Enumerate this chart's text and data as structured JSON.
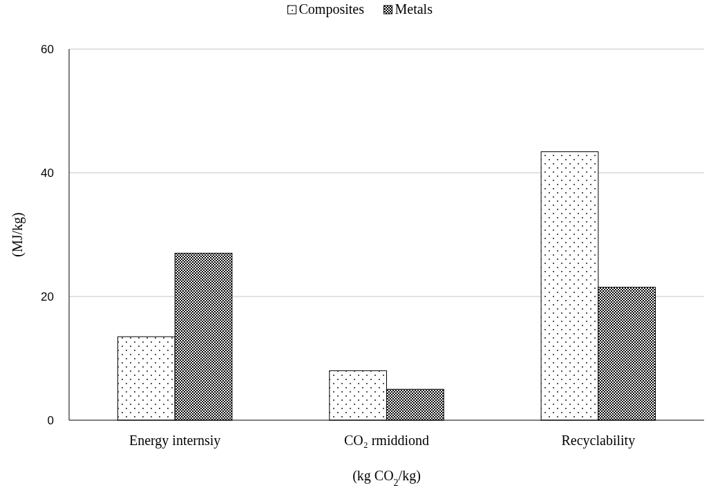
{
  "chart_data": {
    "type": "bar",
    "xlabel": "(kg CO$_{2}$/kg)",
    "ylabel": "(MJ/kg)",
    "categories": [
      "Energy internsiy",
      "CO₂ rmiddiond",
      "Recyclability"
    ],
    "series": [
      {
        "name": "Composites",
        "color": "#000000",
        "values": [
          13.5,
          8,
          43.4
        ]
      },
      {
        "name": "Metals",
        "color": "#000000",
        "values": [
          27,
          5,
          21.5
        ]
      }
    ],
    "ylim": [
      0,
      60
    ],
    "yticks": [
      0,
      20,
      40,
      60
    ],
    "grid": "y",
    "legend": "top"
  }
}
